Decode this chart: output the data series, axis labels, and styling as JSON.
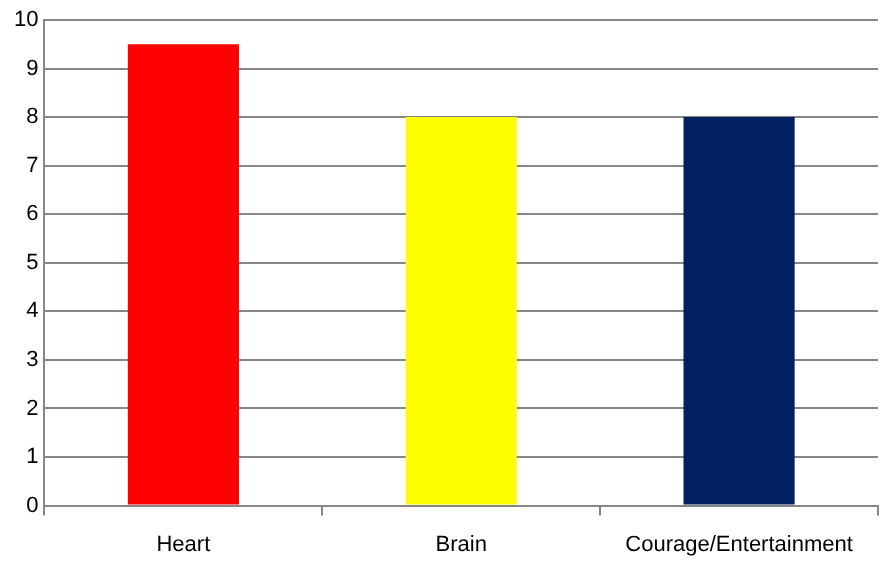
{
  "chart_data": {
    "type": "bar",
    "categories": [
      "Heart",
      "Brain",
      "Courage/Entertainment"
    ],
    "values": [
      9.5,
      8,
      8
    ],
    "colors": [
      "#ff0000",
      "#ffff00",
      "#002060"
    ],
    "ylim": [
      0,
      10
    ],
    "yticks": [
      0,
      1,
      2,
      3,
      4,
      5,
      6,
      7,
      8,
      9,
      10
    ],
    "grid": "y",
    "legend": false
  }
}
